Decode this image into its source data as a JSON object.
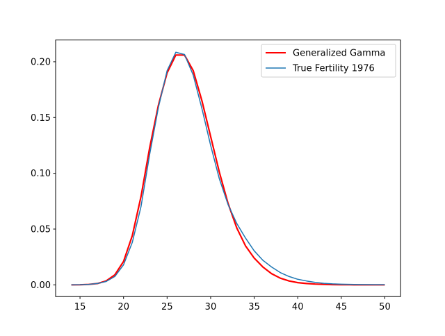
{
  "chart_data": {
    "type": "line",
    "title": "",
    "xlabel": "",
    "ylabel": "",
    "xlim": [
      12.2,
      51.8
    ],
    "ylim": [
      -0.0105,
      0.2195
    ],
    "xticks": [
      15,
      20,
      25,
      30,
      35,
      40,
      45,
      50
    ],
    "xtick_labels": [
      "15",
      "20",
      "25",
      "30",
      "35",
      "40",
      "45",
      "50"
    ],
    "yticks": [
      0.0,
      0.05,
      0.1,
      0.15,
      0.2
    ],
    "ytick_labels": [
      "0.00",
      "0.05",
      "0.10",
      "0.15",
      "0.20"
    ],
    "grid": false,
    "legend_position": "top-right",
    "x": [
      14,
      15,
      16,
      17,
      18,
      19,
      20,
      21,
      22,
      23,
      24,
      25,
      26,
      27,
      28,
      29,
      30,
      31,
      32,
      33,
      34,
      35,
      36,
      37,
      38,
      39,
      40,
      41,
      42,
      43,
      44,
      45,
      46,
      47,
      48,
      49,
      50
    ],
    "series": [
      {
        "name": "Generalized Gamma",
        "color": "#ff0000",
        "values": [
          0.0,
          0.0001,
          0.0004,
          0.0012,
          0.0035,
          0.009,
          0.021,
          0.044,
          0.079,
          0.123,
          0.161,
          0.19,
          0.206,
          0.206,
          0.192,
          0.165,
          0.133,
          0.101,
          0.073,
          0.051,
          0.035,
          0.024,
          0.016,
          0.01,
          0.006,
          0.0035,
          0.002,
          0.0012,
          0.0007,
          0.0004,
          0.0002,
          0.0001,
          0.0001,
          0.0,
          0.0,
          0.0,
          0.0
        ]
      },
      {
        "name": "True Fertility 1976",
        "color": "#1f77b4",
        "values": [
          0.0,
          0.0001,
          0.0004,
          0.0012,
          0.003,
          0.0075,
          0.018,
          0.038,
          0.07,
          0.117,
          0.159,
          0.192,
          0.2085,
          0.2065,
          0.188,
          0.158,
          0.125,
          0.095,
          0.072,
          0.055,
          0.042,
          0.0305,
          0.022,
          0.016,
          0.011,
          0.0075,
          0.005,
          0.0035,
          0.0022,
          0.0014,
          0.0009,
          0.0006,
          0.0004,
          0.0003,
          0.0002,
          0.0001,
          0.0001
        ]
      }
    ]
  }
}
